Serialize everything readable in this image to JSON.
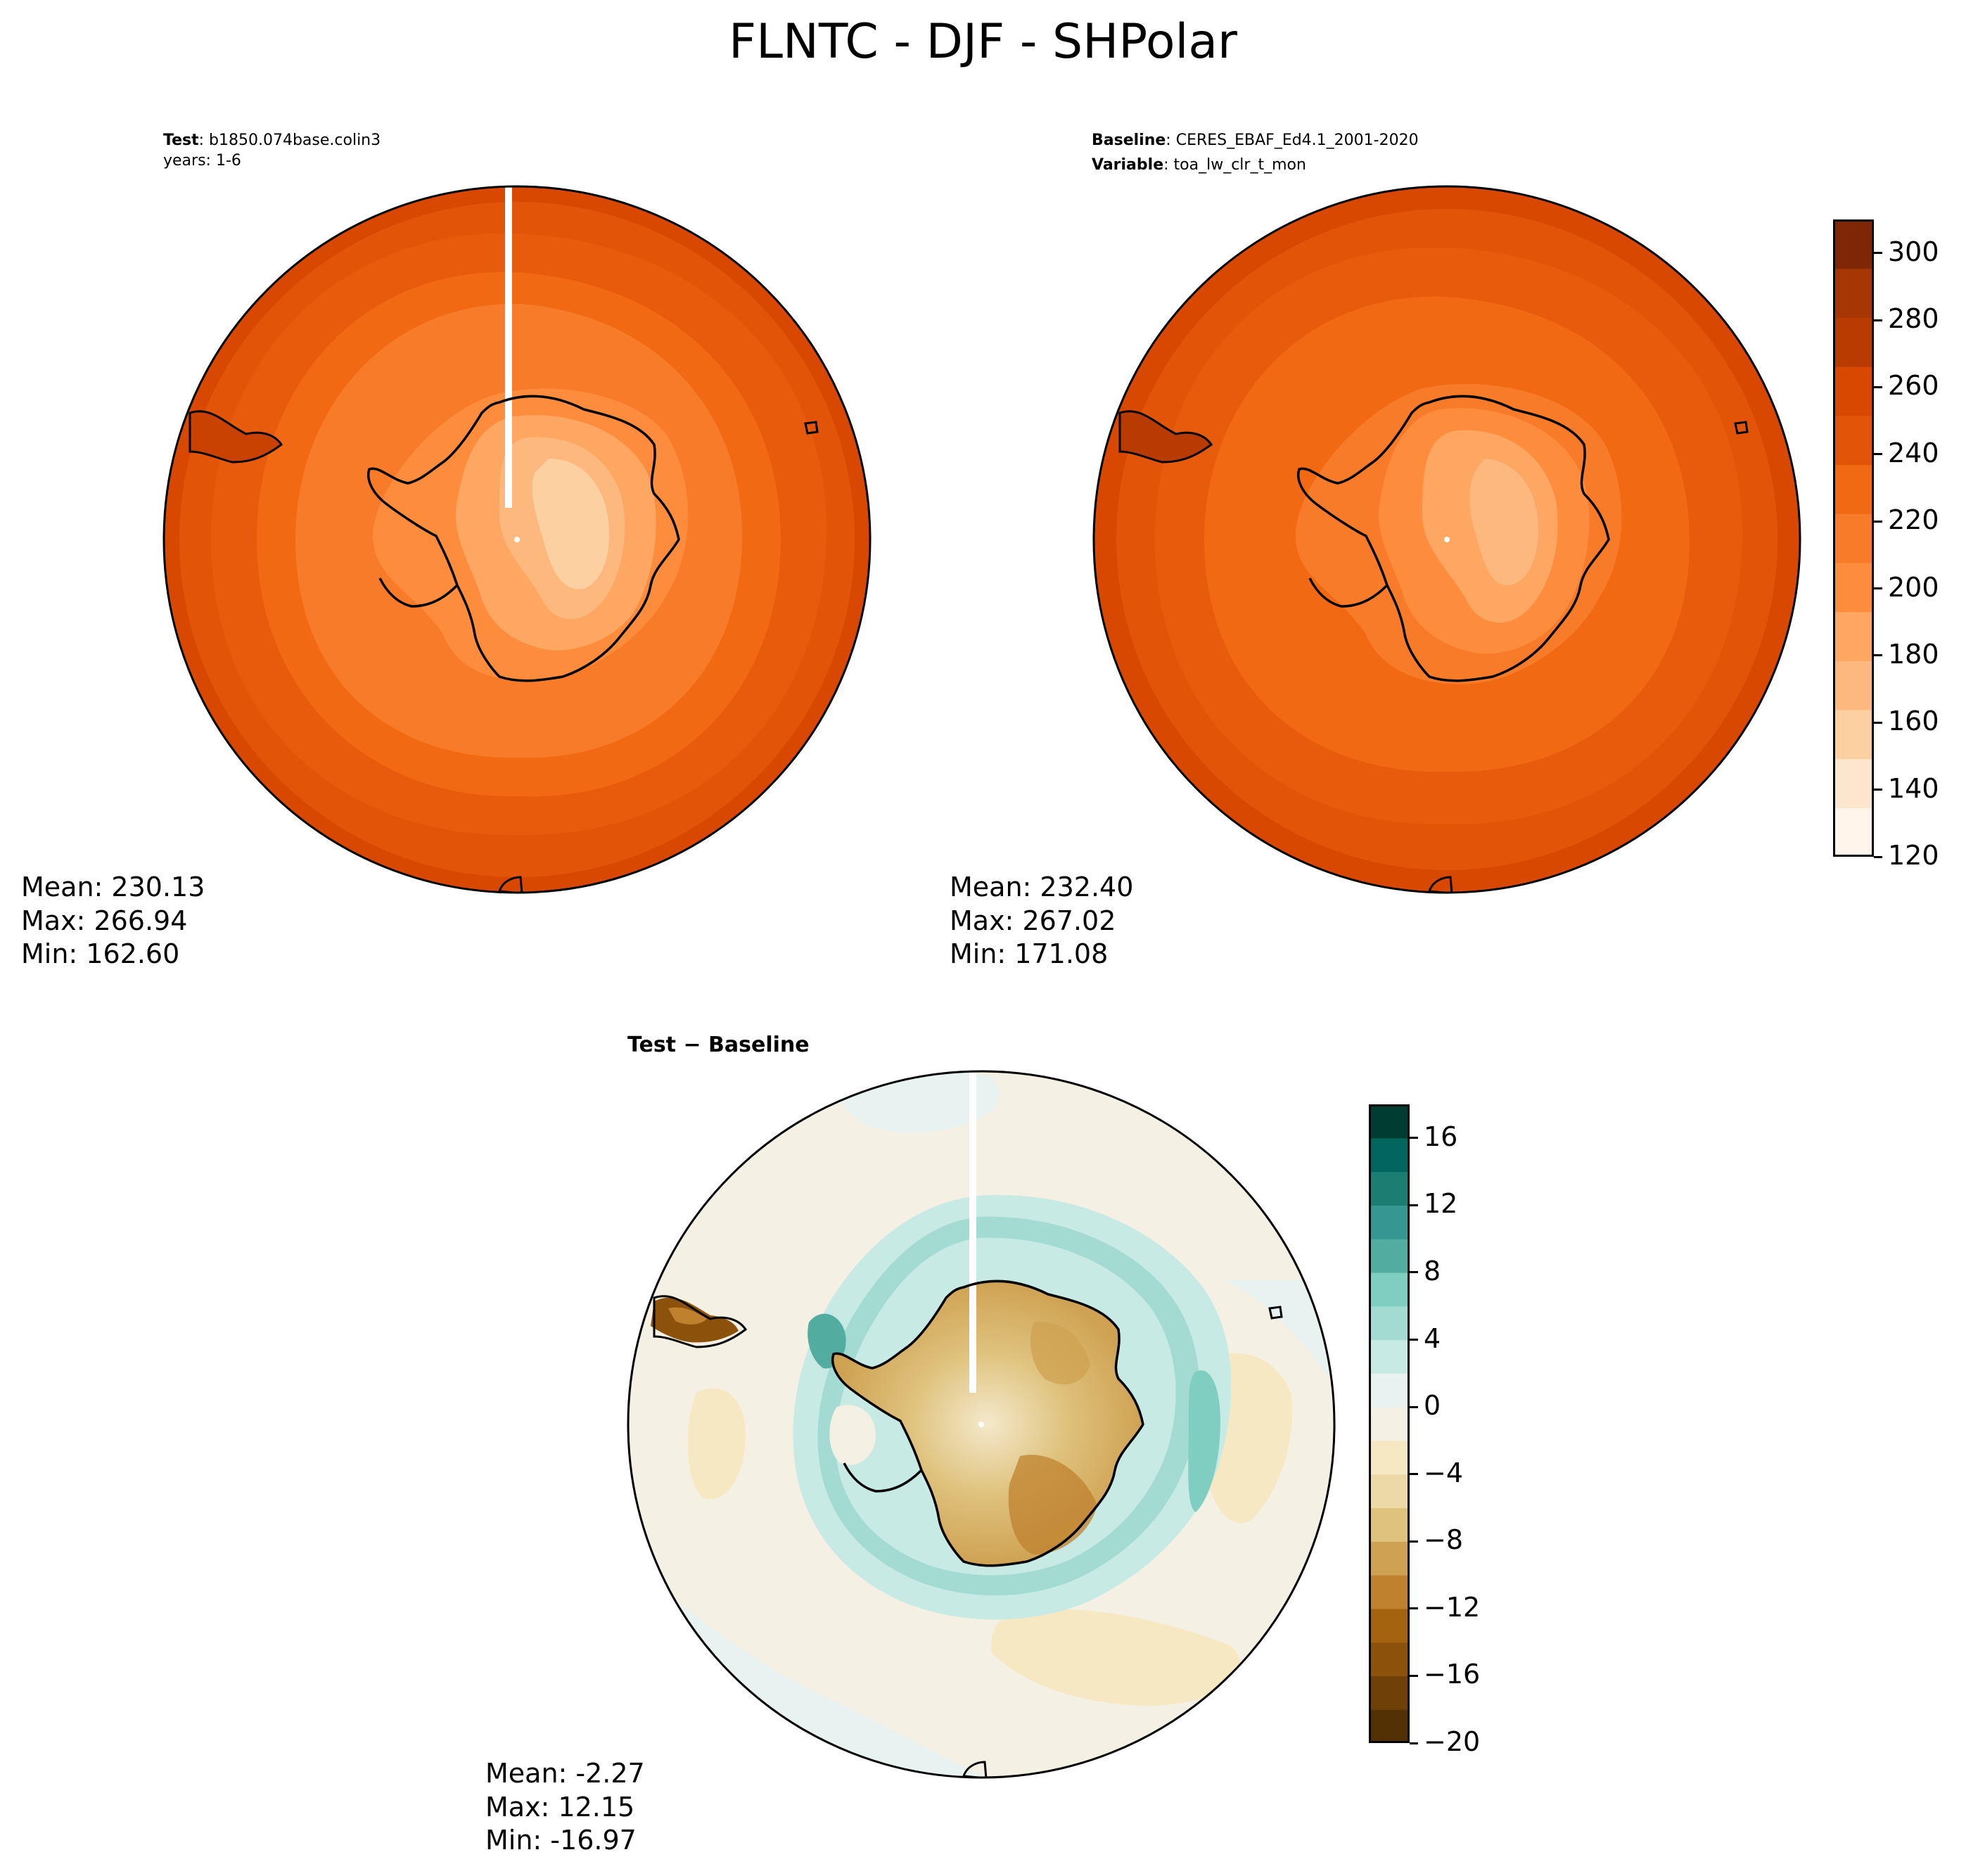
{
  "title": "FLNTC - DJF - SHPolar",
  "test_panel": {
    "meta_line1_label": "Test",
    "meta_line1_value": ": b1850.074base.colin3",
    "meta_line2": "years: 1-6",
    "stats": {
      "mean": "Mean: 230.13",
      "max": "Max: 266.94",
      "min": "Min: 162.60"
    }
  },
  "baseline_panel": {
    "meta_line1_label": "Baseline",
    "meta_line1_value": ": CERES_EBAF_Ed4.1_2001-2020",
    "meta_line2_label": "Variable",
    "meta_line2_value": ": toa_lw_clr_t_mon",
    "stats": {
      "mean": "Mean: 232.40",
      "max": "Max: 267.02",
      "min": "Min: 171.08"
    }
  },
  "diff_panel": {
    "title": "Test − Baseline",
    "stats": {
      "mean": "Mean: -2.27",
      "max": "Max: 12.15",
      "min": "Min: -16.97"
    }
  },
  "colorbar_main": {
    "ticks": [
      "300",
      "280",
      "260",
      "240",
      "220",
      "200",
      "180",
      "160",
      "140",
      "120"
    ],
    "range": [
      120,
      310
    ],
    "colors": [
      "#fff5eb",
      "#fee6ce",
      "#fdd0a2",
      "#fdb97d",
      "#fda762",
      "#fd8d3c",
      "#f87b2a",
      "#f16913",
      "#e25508",
      "#d94801",
      "#b83c02",
      "#a63603",
      "#7f2704"
    ]
  },
  "colorbar_diff": {
    "ticks": [
      "16",
      "12",
      "8",
      "4",
      "0",
      "−4",
      "−8",
      "−12",
      "−16",
      "−20"
    ],
    "range": [
      -20,
      18
    ],
    "colors": [
      "#543005",
      "#6f4008",
      "#8c510a",
      "#a4630f",
      "#bf812d",
      "#cfa253",
      "#dfc27d",
      "#edd9a8",
      "#f6e8c3",
      "#f5f0e4",
      "#e8f3f1",
      "#c7eae5",
      "#a3dbd2",
      "#80cdc1",
      "#52ac9f",
      "#35978f",
      "#1c7e73",
      "#01665e",
      "#003c30"
    ]
  }
}
